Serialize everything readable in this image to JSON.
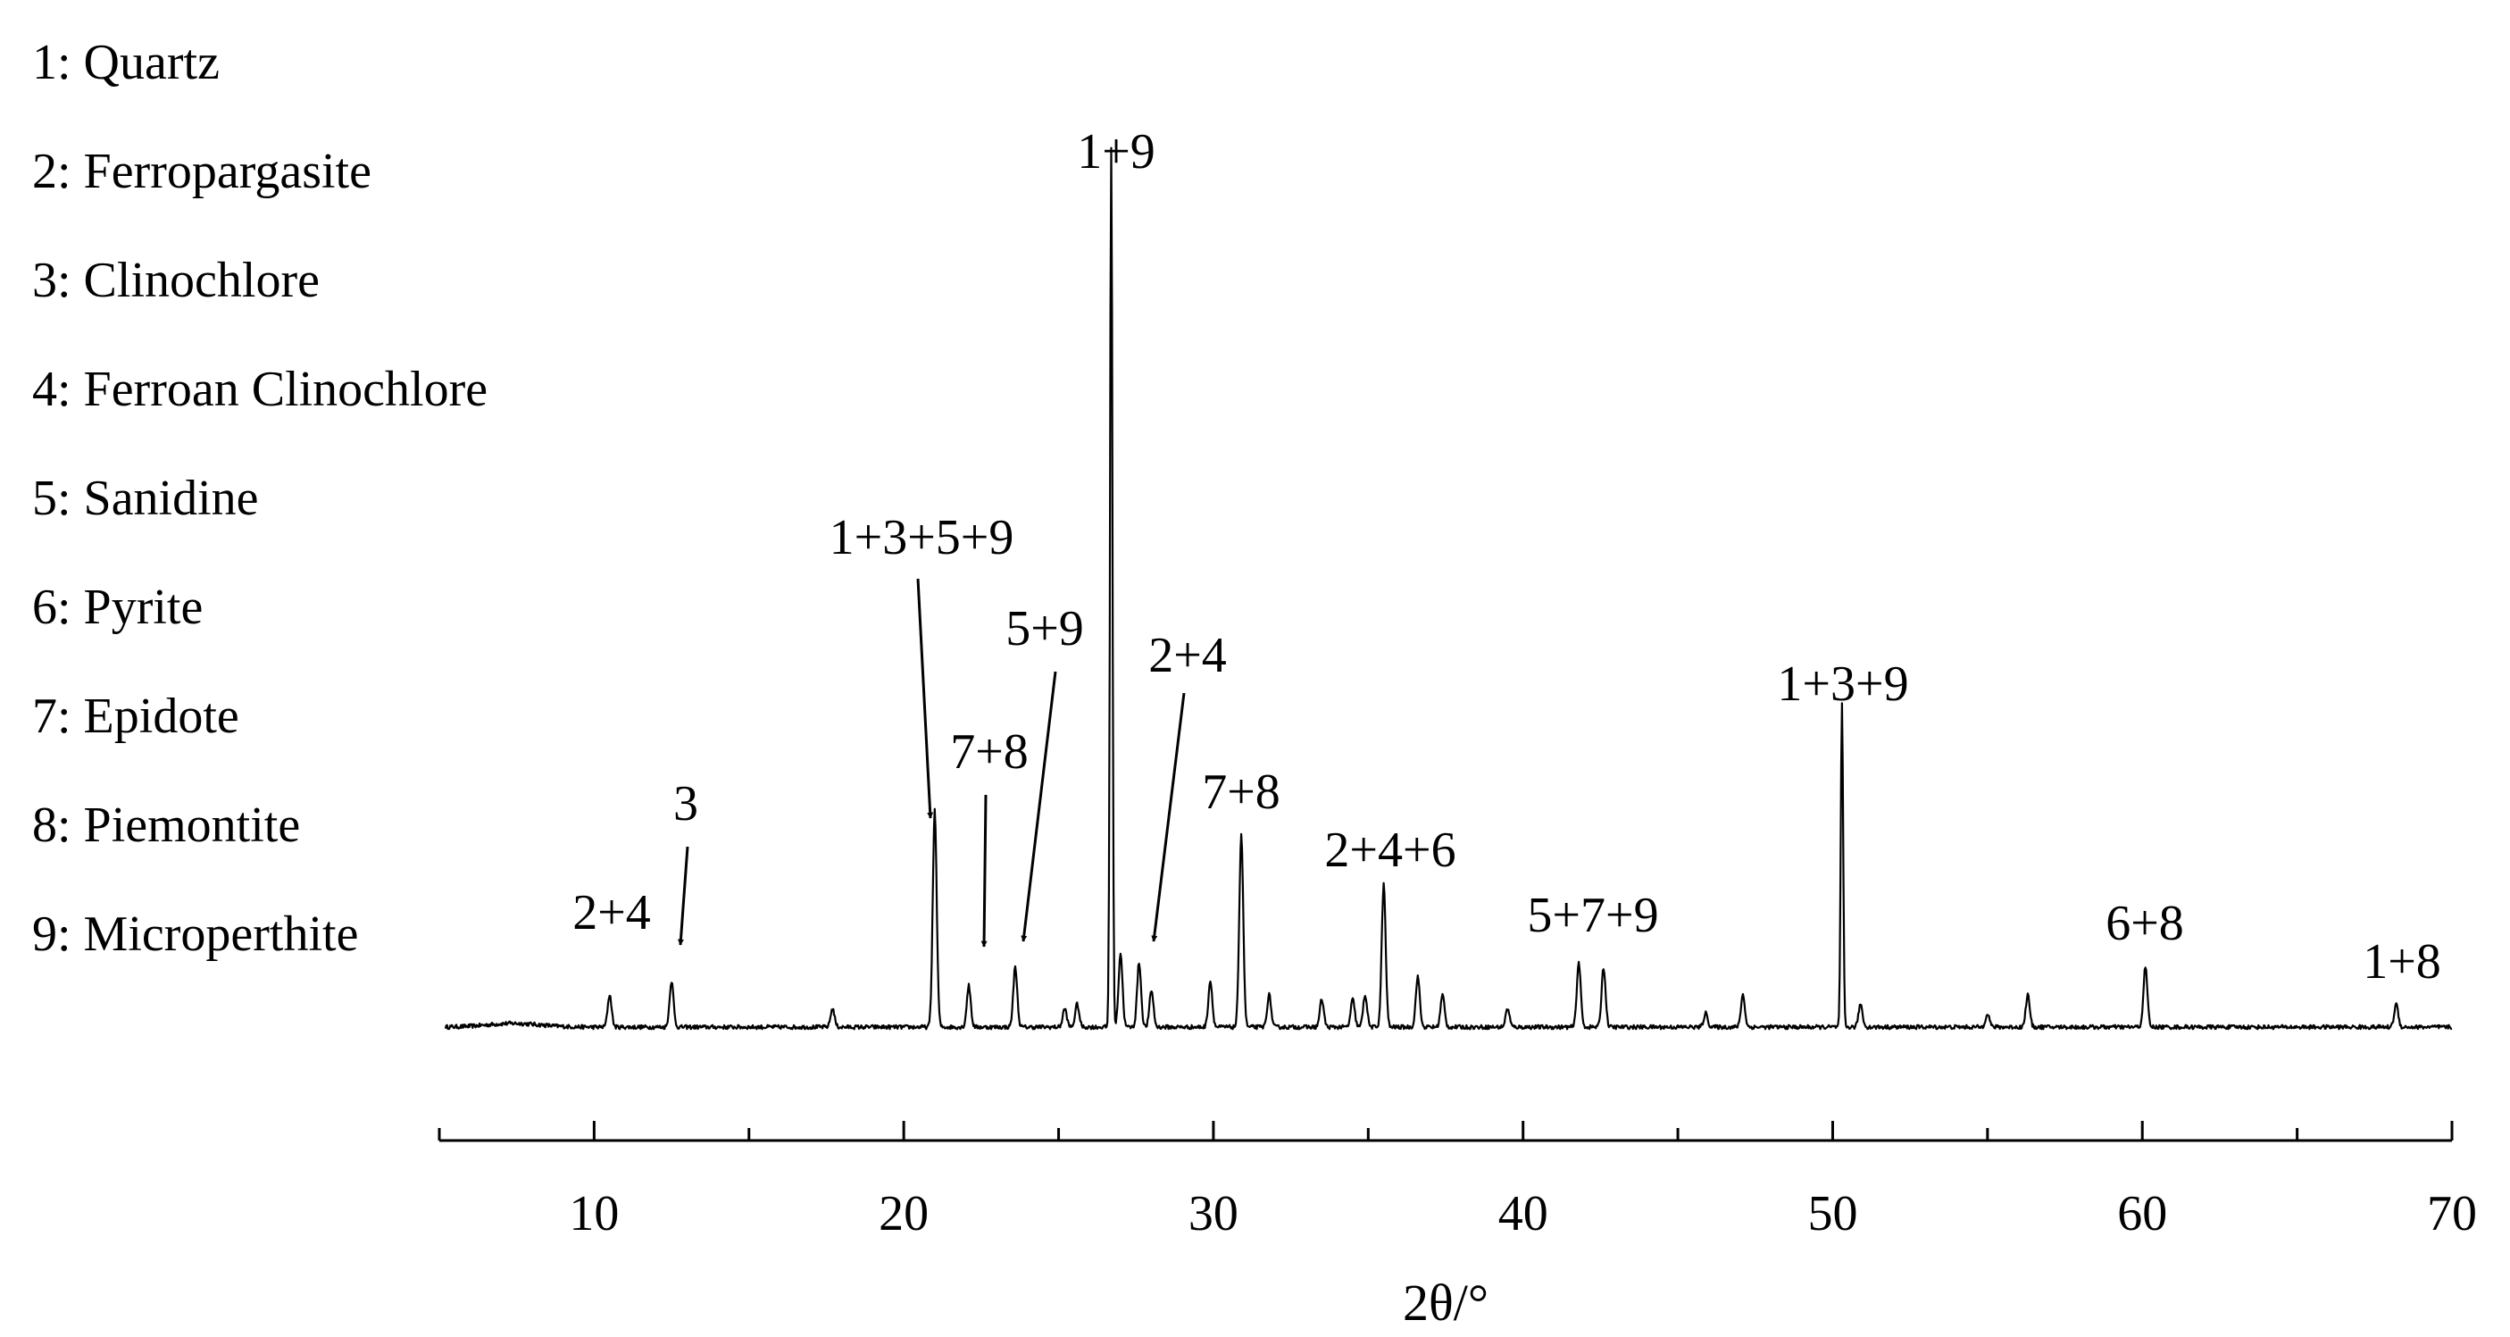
{
  "chart_data": {
    "type": "line",
    "title": "",
    "xlabel": "2θ/°",
    "ylabel": "",
    "xlim": [
      5,
      70
    ],
    "x_ticks": [
      "10",
      "20",
      "30",
      "40",
      "50",
      "60",
      "70"
    ],
    "x_tick_values": [
      10,
      20,
      30,
      40,
      50,
      60,
      70
    ],
    "grid": false,
    "legend": [
      "1: Quartz",
      "2: Ferropargasite",
      "3: Clinochlore",
      "4: Ferroan Clinochlore",
      "5: Sanidine",
      "6: Pyrite",
      "7: Epidote",
      "8: Piemontite",
      "9: Microperthite"
    ],
    "legend_position": "top-left",
    "baseline_intensity": 4,
    "peaks": [
      {
        "x": 10.5,
        "y": 11
      },
      {
        "x": 12.5,
        "y": 14
      },
      {
        "x": 17.7,
        "y": 8
      },
      {
        "x": 21.0,
        "y": 51
      },
      {
        "x": 22.1,
        "y": 13
      },
      {
        "x": 23.6,
        "y": 17
      },
      {
        "x": 25.2,
        "y": 8
      },
      {
        "x": 25.6,
        "y": 9
      },
      {
        "x": 26.7,
        "y": 195
      },
      {
        "x": 27.0,
        "y": 20
      },
      {
        "x": 27.6,
        "y": 18
      },
      {
        "x": 28.0,
        "y": 12
      },
      {
        "x": 29.9,
        "y": 14
      },
      {
        "x": 30.9,
        "y": 46
      },
      {
        "x": 31.8,
        "y": 11
      },
      {
        "x": 33.5,
        "y": 10
      },
      {
        "x": 34.5,
        "y": 10
      },
      {
        "x": 34.9,
        "y": 11
      },
      {
        "x": 35.5,
        "y": 35
      },
      {
        "x": 36.6,
        "y": 15
      },
      {
        "x": 37.4,
        "y": 11
      },
      {
        "x": 39.5,
        "y": 8
      },
      {
        "x": 41.8,
        "y": 18
      },
      {
        "x": 42.6,
        "y": 17
      },
      {
        "x": 45.9,
        "y": 7
      },
      {
        "x": 47.1,
        "y": 11
      },
      {
        "x": 50.3,
        "y": 74
      },
      {
        "x": 50.9,
        "y": 9
      },
      {
        "x": 55.0,
        "y": 7
      },
      {
        "x": 56.3,
        "y": 11
      },
      {
        "x": 60.1,
        "y": 17
      },
      {
        "x": 68.2,
        "y": 9
      }
    ],
    "annotations": [
      {
        "label": "2+4",
        "x": 10.5
      },
      {
        "label": "3",
        "x": 12.5,
        "arrow": true
      },
      {
        "label": "1+3+5+9",
        "x": 20.8,
        "arrow": true
      },
      {
        "label": "7+8",
        "x": 22.3,
        "arrow": true
      },
      {
        "label": "5+9",
        "x": 23.9,
        "arrow": true
      },
      {
        "label": "1+9",
        "x": 26.7
      },
      {
        "label": "2+4",
        "x": 28.1,
        "arrow": true
      },
      {
        "label": "7+8",
        "x": 30.9
      },
      {
        "label": "2+4+6",
        "x": 35.5
      },
      {
        "label": "5+7+9",
        "x": 42.2
      },
      {
        "label": "1+3+9",
        "x": 50.3
      },
      {
        "label": "6+8",
        "x": 60.1
      },
      {
        "label": "1+8",
        "x": 68.2
      }
    ]
  }
}
